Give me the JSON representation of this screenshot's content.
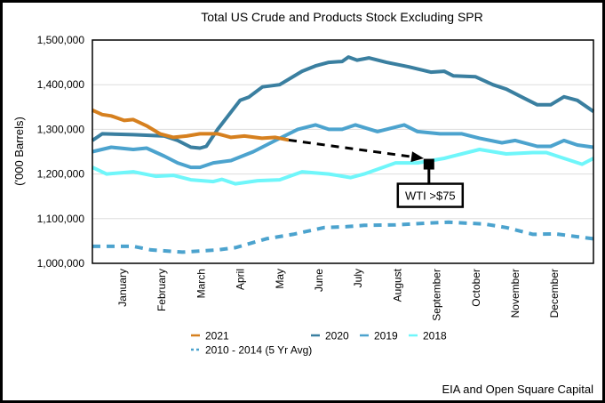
{
  "chart_data": {
    "type": "line",
    "title": "Total US Crude and Products Stock Excluding SPR",
    "xlabel": "",
    "ylabel": "('000 Barrels)",
    "xlim": [
      0,
      12.76
    ],
    "ylim": [
      1000000,
      1500000
    ],
    "yticks": [
      1000000,
      1100000,
      1200000,
      1300000,
      1400000,
      1500000
    ],
    "ytick_labels": [
      "1,000,000",
      "1,100,000",
      "1,200,000",
      "1,300,000",
      "1,400,000",
      "1,500,000"
    ],
    "xtick_positions": [
      0.77,
      1.77,
      2.77,
      3.77,
      4.77,
      5.77,
      6.77,
      7.77,
      8.77,
      9.77,
      10.77,
      11.77
    ],
    "xtick_labels": [
      "January",
      "February",
      "March",
      "April",
      "May",
      "June",
      "July",
      "August",
      "September",
      "October",
      "November",
      "December"
    ],
    "grid": true,
    "legend_position": "bottom",
    "series": [
      {
        "name": "2021",
        "color": "#D6801F",
        "dashed": false,
        "x": [
          0,
          0.25,
          0.48,
          0.81,
          1.04,
          1.38,
          1.72,
          2.06,
          2.4,
          2.74,
          3.19,
          3.53,
          3.87,
          4.32,
          4.66,
          5.0
        ],
        "y": [
          1343000,
          1333000,
          1330000,
          1320000,
          1322000,
          1308000,
          1290000,
          1282000,
          1285000,
          1290000,
          1290000,
          1282000,
          1285000,
          1280000,
          1282000,
          1276000
        ]
      },
      {
        "name": "2020",
        "color": "#3A7FA0",
        "dashed": false,
        "x": [
          0,
          0.25,
          1.04,
          1.83,
          2.17,
          2.51,
          2.74,
          2.9,
          3.19,
          3.76,
          3.98,
          4.33,
          4.77,
          5.34,
          5.68,
          6.02,
          6.36,
          6.52,
          6.74,
          7.04,
          7.49,
          8.05,
          8.62,
          8.96,
          9.19,
          9.75,
          10.2,
          10.54,
          10.99,
          11.33,
          11.67,
          12.01,
          12.35,
          12.76
        ],
        "y": [
          1275000,
          1290000,
          1288000,
          1285000,
          1275000,
          1260000,
          1258000,
          1262000,
          1300000,
          1365000,
          1372000,
          1395000,
          1400000,
          1430000,
          1442000,
          1450000,
          1452000,
          1462000,
          1455000,
          1460000,
          1450000,
          1440000,
          1428000,
          1430000,
          1420000,
          1418000,
          1400000,
          1390000,
          1370000,
          1355000,
          1355000,
          1373000,
          1365000,
          1340000
        ]
      },
      {
        "name": "2019",
        "color": "#4CA3CE",
        "dashed": false,
        "x": [
          0,
          0.48,
          1.04,
          1.38,
          1.83,
          2.17,
          2.51,
          2.74,
          3.08,
          3.53,
          4.1,
          4.66,
          5.23,
          5.68,
          6.02,
          6.36,
          6.7,
          7.26,
          7.94,
          8.28,
          8.85,
          9.41,
          9.86,
          10.43,
          10.77,
          11.33,
          11.67,
          12.01,
          12.35,
          12.76
        ],
        "y": [
          1250000,
          1260000,
          1255000,
          1258000,
          1240000,
          1225000,
          1215000,
          1215000,
          1225000,
          1230000,
          1250000,
          1275000,
          1300000,
          1310000,
          1300000,
          1300000,
          1310000,
          1295000,
          1310000,
          1295000,
          1290000,
          1290000,
          1280000,
          1270000,
          1275000,
          1262000,
          1262000,
          1275000,
          1265000,
          1260000
        ]
      },
      {
        "name": "2018",
        "color": "#6FF6FA",
        "dashed": false,
        "x": [
          0,
          0.36,
          1.04,
          1.61,
          2.06,
          2.51,
          3.08,
          3.3,
          3.64,
          4.21,
          4.77,
          5.34,
          6.02,
          6.58,
          6.92,
          7.72,
          8.28,
          8.96,
          9.86,
          10.54,
          11.22,
          11.56,
          12.01,
          12.47,
          12.76
        ],
        "y": [
          1215000,
          1200000,
          1205000,
          1195000,
          1197000,
          1187000,
          1183000,
          1188000,
          1178000,
          1185000,
          1187000,
          1205000,
          1200000,
          1192000,
          1200000,
          1225000,
          1225000,
          1235000,
          1255000,
          1245000,
          1248000,
          1248000,
          1235000,
          1222000,
          1235000
        ]
      },
      {
        "name": "2010 - 2014 (5 Yr Avg)",
        "color": "#4CA3CE",
        "dashed": true,
        "x": [
          0,
          1.04,
          1.49,
          2.29,
          3.19,
          3.64,
          4.43,
          5.11,
          5.9,
          6.47,
          6.92,
          7.72,
          8.51,
          9.07,
          9.98,
          10.54,
          11.22,
          11.79,
          12.76
        ],
        "y": [
          1038000,
          1038000,
          1030000,
          1025000,
          1030000,
          1035000,
          1055000,
          1065000,
          1080000,
          1082000,
          1085000,
          1086000,
          1090000,
          1092000,
          1088000,
          1080000,
          1065000,
          1066000,
          1055000
        ]
      }
    ],
    "annotations": [
      {
        "type": "arrow",
        "from": [
          5.0,
          1276000
        ],
        "to": [
          8.44,
          1235000
        ]
      },
      {
        "type": "marker",
        "at": [
          8.57,
          1222000
        ],
        "label": "WTI >$75"
      }
    ],
    "source": "EIA and Open Square Capital"
  }
}
